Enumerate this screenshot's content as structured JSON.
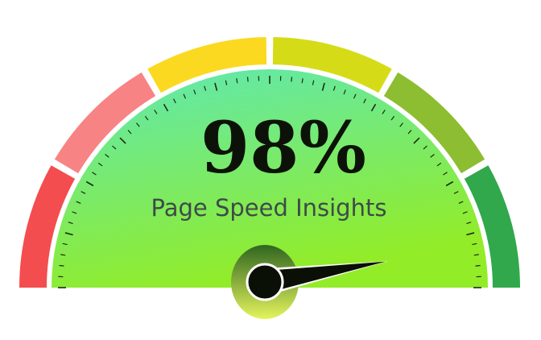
{
  "gauge": {
    "value": 98,
    "score_text": "98%",
    "caption": "Page Speed Insights",
    "needle_icon": "gauge-needle-icon",
    "segments": [
      {
        "color": "#f44d4f"
      },
      {
        "color": "#f88384"
      },
      {
        "color": "#fbd920"
      },
      {
        "color": "#d6db18"
      },
      {
        "color": "#8dbd30"
      },
      {
        "color": "#31a84b"
      }
    ],
    "face_gradient": {
      "top": "#5ee8b6",
      "bottom": "#92ec28"
    },
    "hub_color": "#0b1006",
    "ring_gradient": {
      "top": "#2f6520",
      "bottom": "#e4f45c"
    }
  }
}
